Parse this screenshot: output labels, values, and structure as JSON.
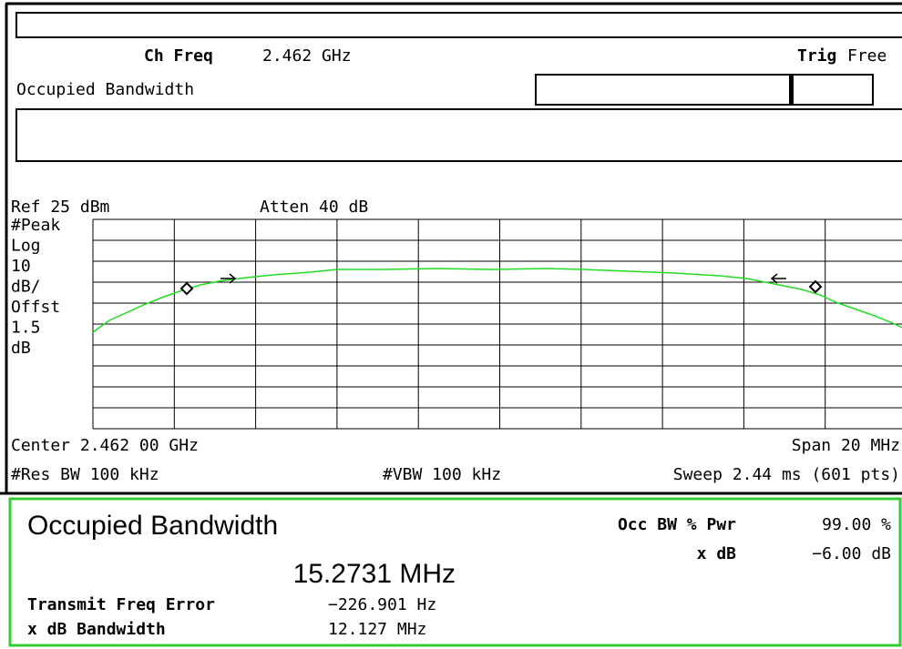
{
  "header": {
    "ch_freq_label": "Ch Freq",
    "ch_freq_value": "2.462 GHz",
    "trig_label": "Trig",
    "trig_value": "Free",
    "mode": "Occupied Bandwidth"
  },
  "display": {
    "ref": "Ref 25 dBm",
    "atten": "Atten 40 dB",
    "scale": [
      "#Peak",
      "Log",
      "10",
      "dB/",
      "Offst",
      "1.5",
      "dB"
    ]
  },
  "footer": {
    "center": "Center 2.462 00 GHz",
    "span": "Span 20 MHz",
    "res_bw": "#Res BW 100 kHz",
    "vbw": "#VBW 100 kHz",
    "sweep": "Sweep 2.44 ms (601 pts)"
  },
  "results": {
    "title": "Occupied Bandwidth",
    "value": "15.2731 MHz",
    "occ_label": "Occ BW % Pwr",
    "occ_value": "99.00 %",
    "xdb_label": "x dB",
    "xdb_value": "−6.00 dB",
    "tfe_label": "Transmit Freq Error",
    "tfe_value": "−226.901 Hz",
    "xdbbw_label": "x dB Bandwidth",
    "xdbbw_value": "12.127 MHz"
  }
}
